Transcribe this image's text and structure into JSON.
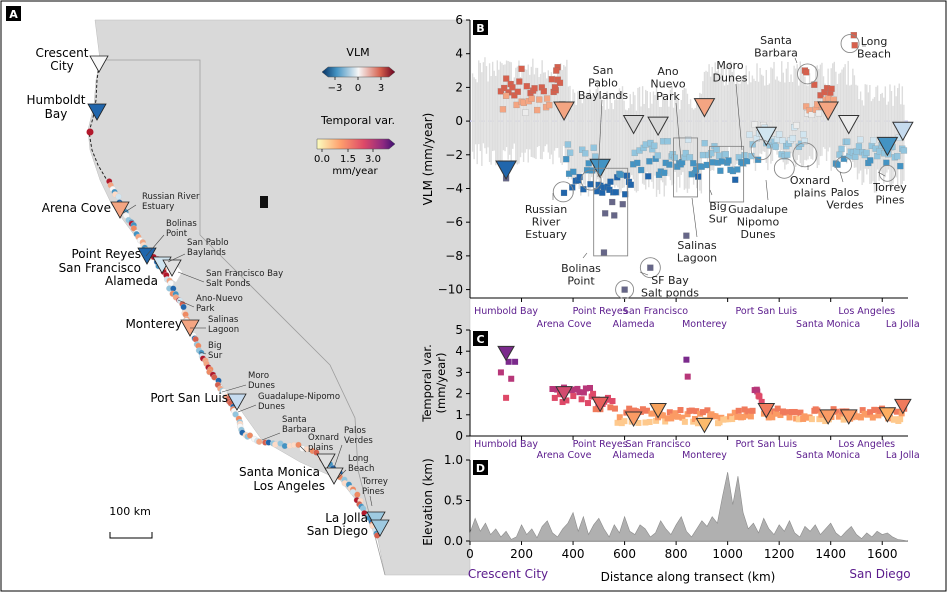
{
  "panel_a": {
    "panel_label": "A",
    "vlm_legend": {
      "title": "VLM",
      "ticks": [
        "−3",
        "0",
        "3"
      ]
    },
    "temporal_legend": {
      "title": "Temporal var.",
      "ticks": [
        "0.0",
        "1.5",
        "3.0"
      ],
      "unit": "mm/year"
    },
    "scale_bar": "100 km",
    "big_labels": [
      "Crescent City",
      "Humboldt Bay",
      "Arena Cove",
      "Point Reyes",
      "San Francisco",
      "Alameda",
      "Monterey",
      "Port San Luis",
      "Santa Monica",
      "Los Angeles",
      "La Jolla",
      "San Diego"
    ],
    "small_labels": [
      "Russian River Estuary",
      "Bolinas Point",
      "San Pablo Baylands",
      "San Francisco Bay Salt Ponds",
      "Ano-Nuevo Park",
      "Salinas Lagoon",
      "Big Sur",
      "Moro Dunes",
      "Guadalupe-Nipomo Dunes",
      "Santa Barbara",
      "Oxnard plains",
      "Palos Verdes",
      "Long Beach",
      "Torrey Pines"
    ],
    "colors": {
      "coast_red": "#b2182b",
      "coast_blue": "#2166ac",
      "neutral": "#f0f0f0",
      "land": "#d9d9d9"
    }
  },
  "chart_data": [
    {
      "panel": "B",
      "type": "scatter",
      "xlabel": "",
      "ylabel": "VLM (mm/year)",
      "xlim": [
        0,
        1700
      ],
      "ylim": [
        -10.5,
        6
      ],
      "yticks": [
        6,
        4,
        2,
        0,
        -2,
        -4,
        -6,
        -8,
        -10
      ],
      "reference_line": 0,
      "station_labels_top": [
        "Humbold Bay",
        "Point Reyes",
        "San Francisco",
        "Port San Luis",
        "Los Angeles"
      ],
      "station_labels_bottom": [
        "Arena Cove",
        "Alameda",
        "Monterey",
        "Santa Monica",
        "La Jolla"
      ],
      "annotations": [
        "Russian River Estuary",
        "Bolinas Point",
        "San Pablo Baylands",
        "SF Bay Salt ponds",
        "Ano Nuevo Park",
        "Salinas Lagoon",
        "Moro Dunes",
        "Big Sur",
        "Guadalupe Nipomo Dunes",
        "Santa Barbara",
        "Oxnard plains",
        "Palos Verdes",
        "Long Beach",
        "Torrey Pines"
      ],
      "tide_gauges": [
        {
          "x": 140,
          "y": -2.9
        },
        {
          "x": 365,
          "y": 0.6
        },
        {
          "x": 505,
          "y": -2.8
        },
        {
          "x": 635,
          "y": -0.2
        },
        {
          "x": 730,
          "y": -0.3
        },
        {
          "x": 910,
          "y": 0.8
        },
        {
          "x": 1150,
          "y": -0.9
        },
        {
          "x": 1390,
          "y": 0.6
        },
        {
          "x": 1470,
          "y": -0.2
        },
        {
          "x": 1620,
          "y": -1.5
        },
        {
          "x": 1680,
          "y": -0.6
        }
      ]
    },
    {
      "panel": "C",
      "type": "scatter",
      "xlabel": "",
      "ylabel": "Temporal var. (mm/year)",
      "xlim": [
        0,
        1700
      ],
      "ylim": [
        0,
        5
      ],
      "yticks": [
        0,
        1,
        2,
        3,
        4,
        5
      ],
      "station_labels_top": [
        "Humbold Bay",
        "Point Reyes",
        "San Francisco",
        "Port San Luis",
        "Los Angeles"
      ],
      "station_labels_bottom": [
        "Arena Cove",
        "Alameda",
        "Monterey",
        "Santa Monica",
        "La Jolla"
      ],
      "tide_gauges": [
        {
          "x": 140,
          "y": 3.9
        },
        {
          "x": 365,
          "y": 2.0
        },
        {
          "x": 505,
          "y": 1.5
        },
        {
          "x": 635,
          "y": 0.8
        },
        {
          "x": 730,
          "y": 1.2
        },
        {
          "x": 910,
          "y": 0.5
        },
        {
          "x": 1150,
          "y": 1.2
        },
        {
          "x": 1390,
          "y": 0.9
        },
        {
          "x": 1470,
          "y": 0.9
        },
        {
          "x": 1620,
          "y": 1.0
        },
        {
          "x": 1680,
          "y": 1.4
        }
      ]
    },
    {
      "panel": "D",
      "type": "area",
      "xlabel": "Distance along transect (km)",
      "ylabel": "Elevation (km)",
      "xlim": [
        0,
        1700
      ],
      "ylim": [
        0,
        1.0
      ],
      "xticks": [
        0,
        200,
        400,
        600,
        800,
        1000,
        1200,
        1400,
        1600
      ],
      "yticks": [
        0.0,
        0.5,
        1.0
      ],
      "x": [
        0,
        20,
        40,
        60,
        80,
        100,
        120,
        140,
        160,
        180,
        200,
        220,
        240,
        260,
        280,
        300,
        320,
        340,
        360,
        380,
        400,
        420,
        440,
        460,
        480,
        500,
        520,
        540,
        560,
        580,
        600,
        620,
        640,
        660,
        680,
        700,
        720,
        740,
        760,
        780,
        800,
        820,
        840,
        860,
        880,
        900,
        920,
        940,
        960,
        980,
        1000,
        1020,
        1040,
        1060,
        1080,
        1100,
        1120,
        1140,
        1160,
        1180,
        1200,
        1220,
        1240,
        1260,
        1280,
        1300,
        1320,
        1340,
        1360,
        1380,
        1400,
        1420,
        1440,
        1460,
        1480,
        1500,
        1520,
        1540,
        1560,
        1580,
        1600,
        1620,
        1640,
        1660,
        1680,
        1700
      ],
      "y": [
        0.1,
        0.28,
        0.12,
        0.22,
        0.08,
        0.15,
        0.05,
        0.12,
        0.02,
        0.05,
        0.2,
        0.08,
        0.15,
        0.04,
        0.18,
        0.25,
        0.1,
        0.05,
        0.15,
        0.22,
        0.35,
        0.12,
        0.3,
        0.08,
        0.2,
        0.28,
        0.15,
        0.05,
        0.2,
        0.1,
        0.3,
        0.12,
        0.08,
        0.2,
        0.15,
        0.05,
        0.1,
        0.25,
        0.15,
        0.08,
        0.2,
        0.3,
        0.12,
        0.05,
        0.15,
        0.25,
        0.18,
        0.3,
        0.22,
        0.55,
        0.85,
        0.45,
        0.8,
        0.35,
        0.15,
        0.22,
        0.1,
        0.28,
        0.15,
        0.08,
        0.2,
        0.12,
        0.25,
        0.1,
        0.05,
        0.18,
        0.12,
        0.2,
        0.08,
        0.15,
        0.22,
        0.1,
        0.05,
        0.12,
        0.18,
        0.08,
        0.03,
        0.1,
        0.05,
        0.12,
        0.08,
        0.1,
        0.05,
        0.02,
        0.01,
        0.0
      ]
    }
  ],
  "panel_b_label": "B",
  "panel_c_label": "C",
  "panel_d_label": "D",
  "bottom_labels": {
    "left": "Crescent City",
    "right": "San Diego"
  },
  "colors": {
    "purple_label": "#5a1a8c",
    "gauge_edge": "#333333",
    "ref_line": "#c9c9ee",
    "elev_fill": "#b0b0b0"
  }
}
